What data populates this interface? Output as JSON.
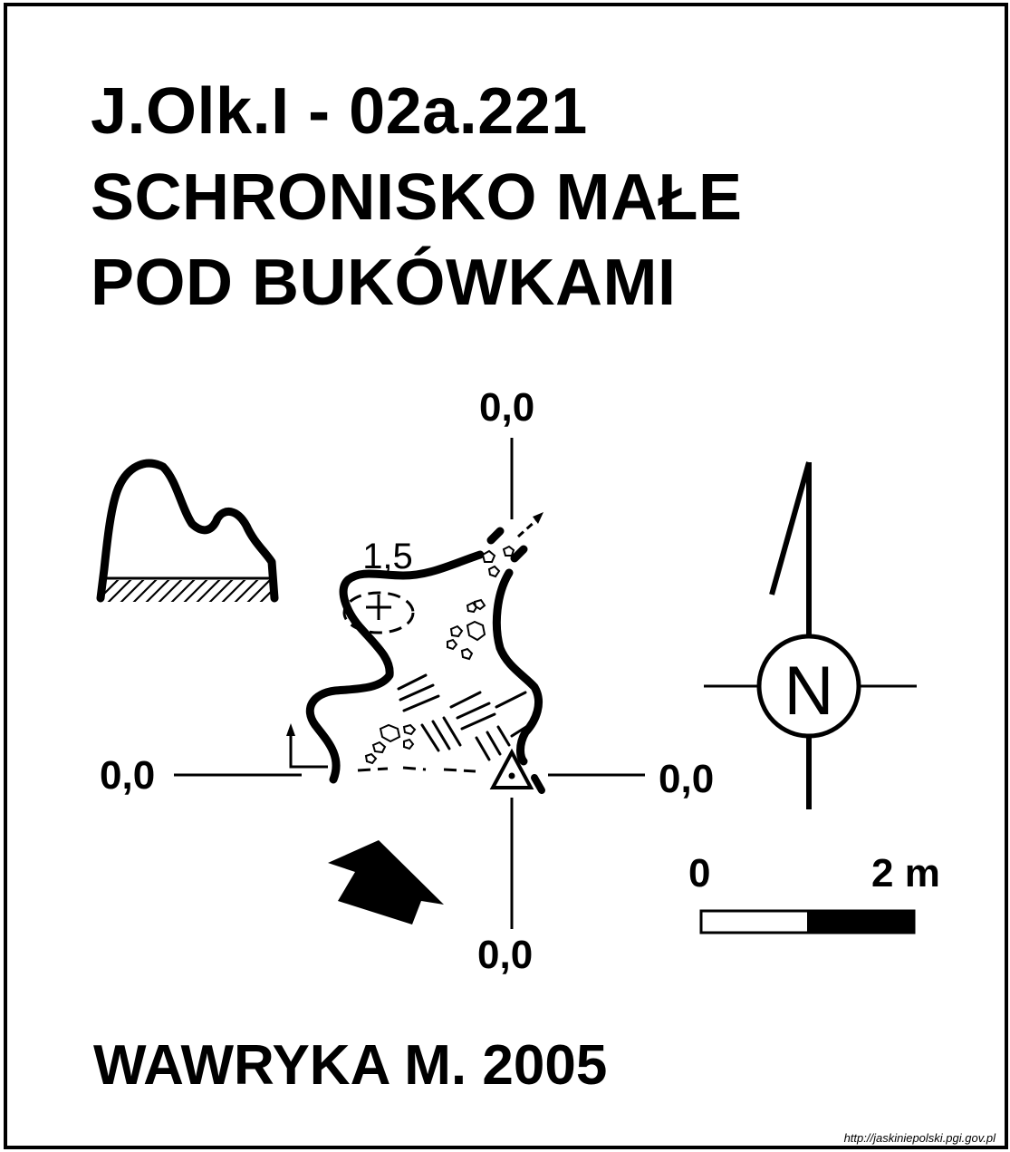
{
  "title": {
    "line1": "J.Olk.I - 02a.221",
    "line2": "SCHRONISKO MAŁE",
    "line3": "POD BUKÓWKAMI"
  },
  "plan": {
    "datum_top": "0,0",
    "datum_left": "0,0",
    "datum_right": "0,0",
    "datum_bottom": "0,0",
    "height_mark": "1,5"
  },
  "compass": {
    "letter": "N"
  },
  "scale_bar": {
    "start_label": "0",
    "end_label": "2 m"
  },
  "author": "WAWRYKA M. 2005",
  "source_url": "http://jaskiniepolski.pgi.gov.pl",
  "colors": {
    "ink": "#000000",
    "paper": "#ffffff"
  }
}
